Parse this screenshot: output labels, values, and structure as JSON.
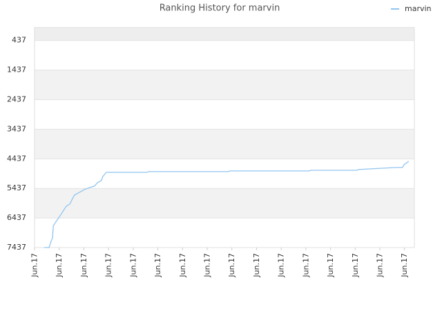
{
  "chart_data": {
    "type": "line",
    "title": "Ranking History for marvin",
    "x": [
      0.39,
      0.59,
      0.67,
      0.73,
      0.76,
      0.84,
      0.98,
      1.18,
      1.29,
      1.43,
      1.54,
      1.62,
      1.82,
      2.02,
      2.24,
      2.43,
      2.55,
      2.71,
      2.77,
      2.91,
      4.56,
      4.62,
      7.86,
      7.92,
      11.14,
      11.2,
      13.07,
      13.13,
      13.63,
      14.13,
      14.64,
      14.92,
      14.98,
      15.17
    ],
    "series": [
      {
        "name": "marvin",
        "color": "#90c4f0",
        "values": [
          7437,
          7437,
          7226,
          7110,
          6713,
          6597,
          6433,
          6177,
          6037,
          5967,
          5780,
          5663,
          5570,
          5477,
          5407,
          5360,
          5243,
          5173,
          5033,
          4893,
          4893,
          4870,
          4870,
          4846,
          4846,
          4823,
          4823,
          4800,
          4776,
          4753,
          4730,
          4730,
          4636,
          4520
        ]
      }
    ],
    "xlim": [
      0,
      15.4
    ],
    "xticks": [
      {
        "value": 0,
        "label": "Jun.17"
      },
      {
        "value": 1,
        "label": "Jun.17"
      },
      {
        "value": 2,
        "label": "Jun.17"
      },
      {
        "value": 3,
        "label": "Jun.17"
      },
      {
        "value": 4,
        "label": "Jun.17"
      },
      {
        "value": 5,
        "label": "Jun.17"
      },
      {
        "value": 6,
        "label": "Jun.17"
      },
      {
        "value": 7,
        "label": "Jun.17"
      },
      {
        "value": 8,
        "label": "Jun.17"
      },
      {
        "value": 9,
        "label": "Jun.17"
      },
      {
        "value": 10,
        "label": "Jun.17"
      },
      {
        "value": 11,
        "label": "Jun.17"
      },
      {
        "value": 12,
        "label": "Jun.17"
      },
      {
        "value": 13,
        "label": "Jun.17"
      },
      {
        "value": 14,
        "label": "Jun.17"
      },
      {
        "value": 15,
        "label": "Jun.17"
      }
    ],
    "ylim": [
      7437,
      0
    ],
    "yticks": [
      437,
      1437,
      2437,
      3437,
      4437,
      5437,
      6437,
      7437
    ],
    "grid": true,
    "legend": "top-right"
  }
}
